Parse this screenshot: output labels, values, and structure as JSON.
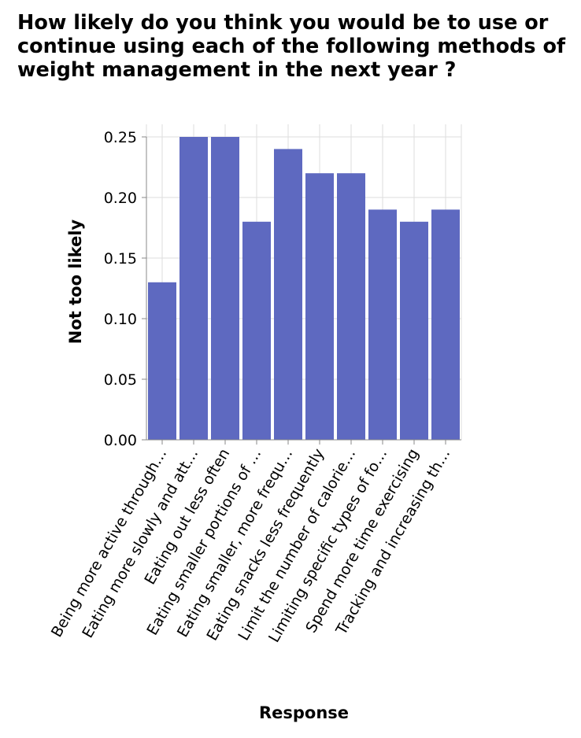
{
  "chart_data": {
    "type": "bar",
    "title": "How likely do you think you would be to use or continue using each of the following methods of weight management in the next year ?",
    "xlabel": "Response",
    "ylabel": "Not too likely",
    "categories": [
      "Being more active through…",
      "Eating more slowly and att…",
      "Eating out less often",
      "Eating smaller portions of …",
      "Eating smaller, more frequ…",
      "Eating snacks less frequently",
      "Limit the number of calorie…",
      "Limiting specific types of fo…",
      "Spend more time exercising",
      "Tracking and increasing th…"
    ],
    "values": [
      0.13,
      0.25,
      0.25,
      0.18,
      0.24,
      0.22,
      0.22,
      0.19,
      0.18,
      0.19
    ],
    "ylim": [
      0,
      0.25
    ],
    "yticks": [
      "0.00",
      "0.05",
      "0.10",
      "0.15",
      "0.20",
      "0.25"
    ],
    "grid": true,
    "bar_color": "#5e69c0"
  }
}
